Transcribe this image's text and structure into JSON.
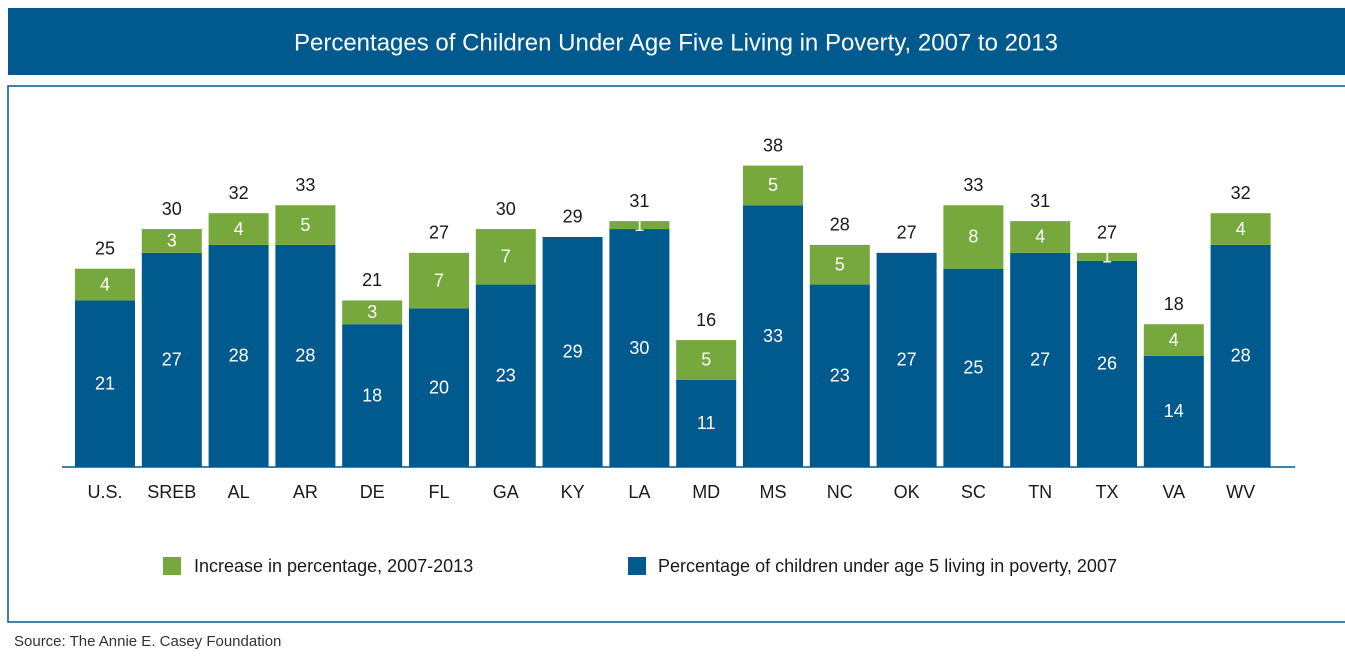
{
  "chart_data": {
    "type": "stacked_bar",
    "title": "Percentages of Children Under Age Five Living in Poverty, 2007 to 2013",
    "categories": [
      "U.S.",
      "SREB",
      "AL",
      "AR",
      "DE",
      "FL",
      "GA",
      "KY",
      "LA",
      "MD",
      "MS",
      "NC",
      "OK",
      "SC",
      "TN",
      "TX",
      "VA",
      "WV"
    ],
    "series": [
      {
        "name": "Percentage of children under age 5 living in poverty, 2007",
        "color": "#005a8e",
        "values": [
          21,
          27,
          28,
          28,
          18,
          20,
          23,
          29,
          30,
          11,
          33,
          23,
          27,
          25,
          27,
          26,
          14,
          28
        ]
      },
      {
        "name": "Increase in percentage, 2007-2013",
        "color": "#77a83d",
        "values": [
          4,
          3,
          4,
          5,
          3,
          7,
          7,
          null,
          1,
          5,
          5,
          5,
          null,
          8,
          4,
          1,
          4,
          4
        ]
      }
    ],
    "totals": [
      25,
      30,
      32,
      33,
      21,
      27,
      30,
      29,
      31,
      16,
      38,
      28,
      27,
      33,
      31,
      27,
      18,
      32
    ],
    "ylim": [
      0,
      44
    ],
    "source": "Source: The Annie E. Casey Foundation"
  }
}
